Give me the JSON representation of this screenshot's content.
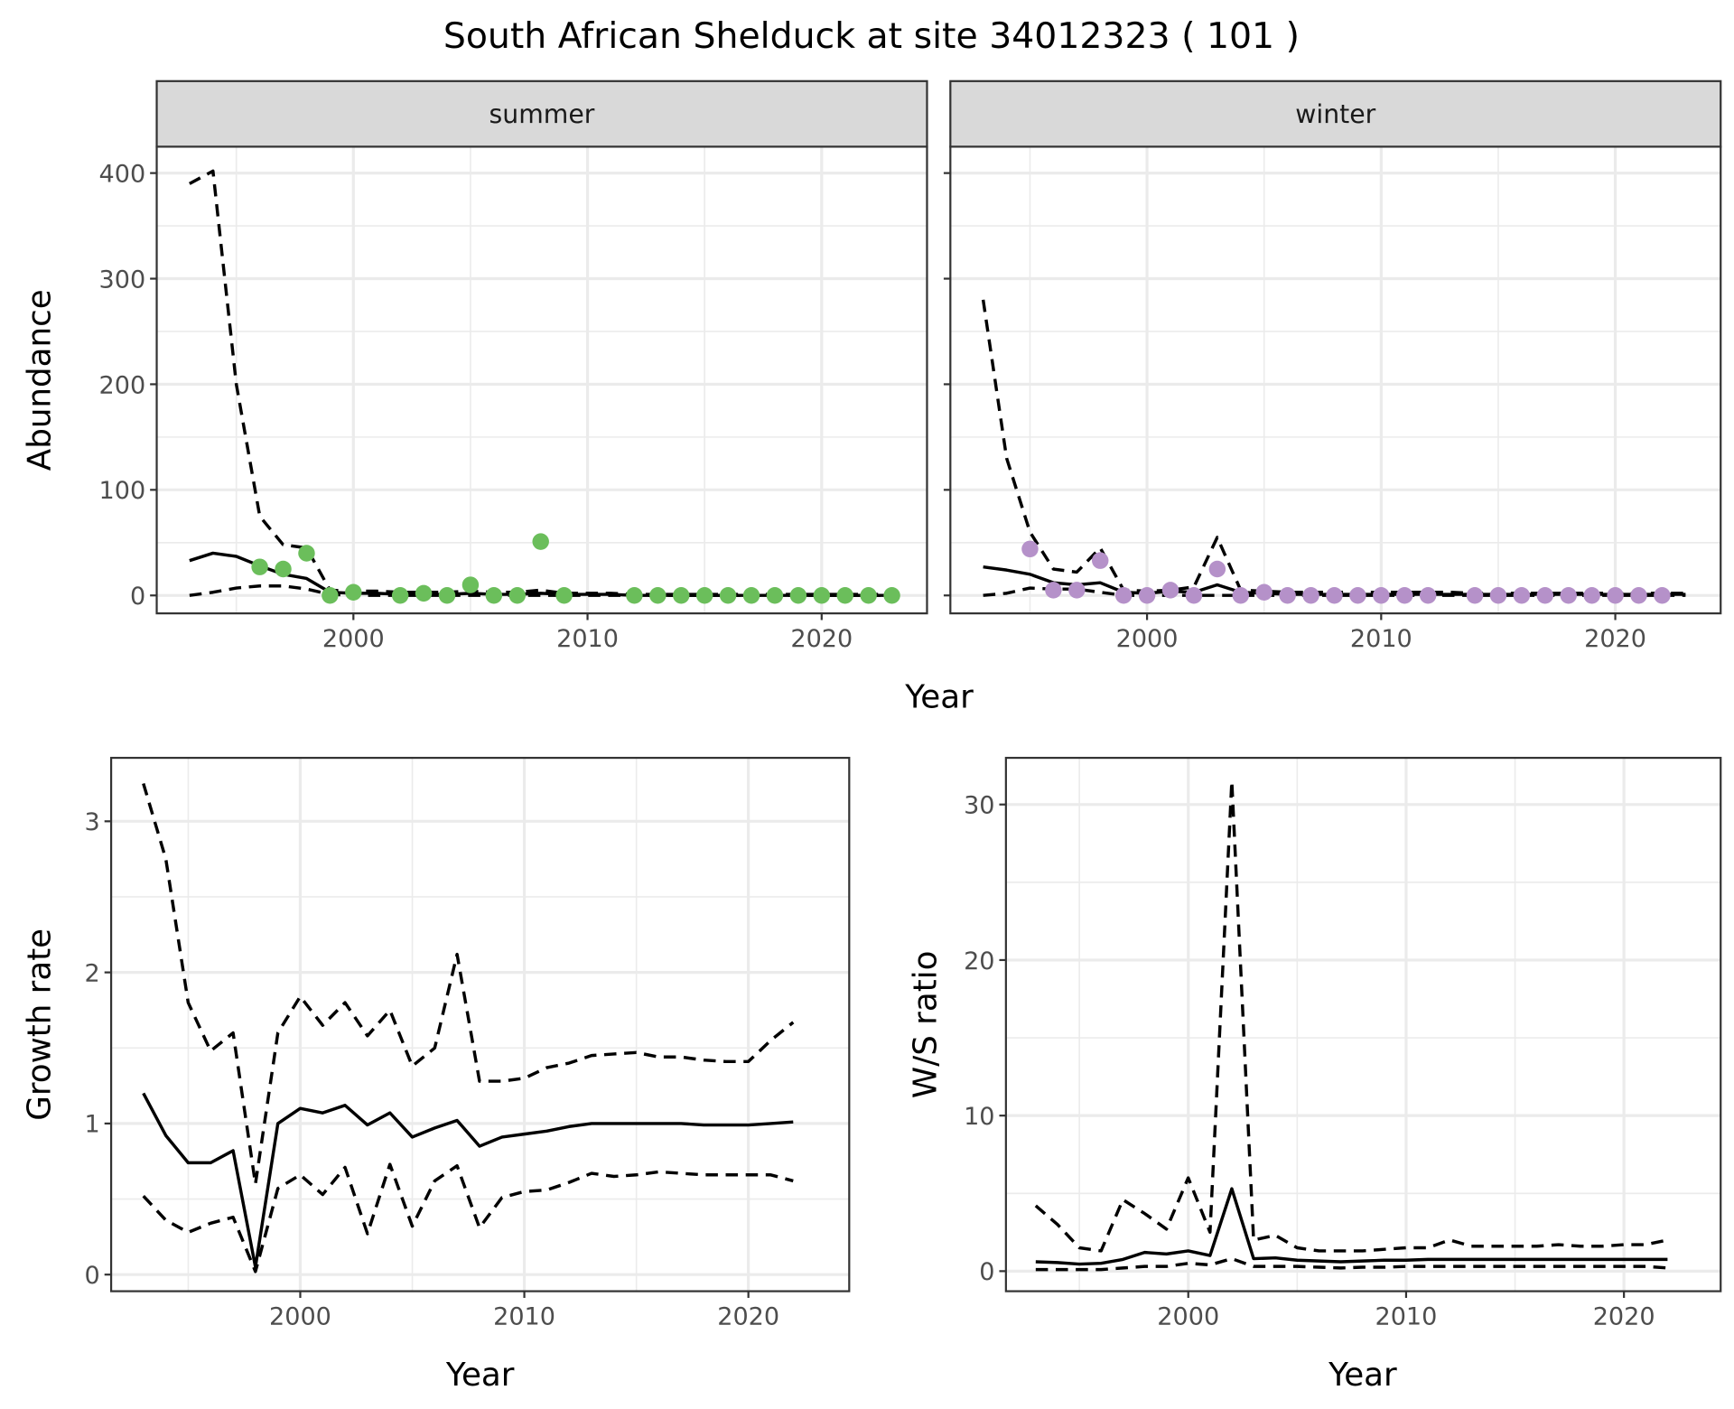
{
  "title": "South African Shelduck at site 34012323 ( 101 )",
  "colors": {
    "summer": "#6BBE5B",
    "winter": "#B591C9",
    "line": "#000000",
    "grid": "#EBEBEB",
    "strip": "#D9D9D9"
  },
  "chart_data": [
    {
      "type": "line",
      "panel": "summer",
      "strip_label": "summer",
      "xlabel": "Year",
      "ylabel": "Abundance",
      "xlim": [
        1991.6,
        2024.5
      ],
      "ylim": [
        -17,
        425
      ],
      "xticks": [
        2000,
        2010,
        2020
      ],
      "yticks": [
        0,
        100,
        200,
        300,
        400
      ],
      "grid": true,
      "x": [
        1993,
        1994,
        1995,
        1996,
        1997,
        1998,
        1999,
        2000,
        2001,
        2002,
        2003,
        2004,
        2005,
        2006,
        2007,
        2008,
        2009,
        2010,
        2011,
        2012,
        2013,
        2014,
        2015,
        2016,
        2017,
        2018,
        2019,
        2020,
        2021,
        2022,
        2023
      ],
      "series": [
        {
          "style": "solid",
          "values": [
            33,
            40,
            37,
            28,
            20,
            16,
            3,
            2,
            2,
            1,
            1,
            1,
            2,
            1,
            1,
            2,
            1,
            1,
            1,
            0,
            0,
            0,
            0,
            0,
            0,
            0,
            0,
            0,
            0,
            0,
            0
          ]
        },
        {
          "style": "dashed",
          "values": [
            390,
            402,
            200,
            75,
            48,
            45,
            5,
            4,
            4,
            3,
            3,
            3,
            4,
            3,
            3,
            5,
            2,
            2,
            2,
            1,
            1,
            1,
            1,
            1,
            1,
            1,
            1,
            1,
            1,
            1,
            1
          ]
        },
        {
          "style": "dashed",
          "values": [
            0,
            3,
            7,
            9,
            9,
            6,
            1,
            0,
            0,
            0,
            0,
            0,
            0,
            0,
            0,
            0,
            0,
            0,
            0,
            0,
            0,
            0,
            0,
            0,
            0,
            0,
            0,
            0,
            0,
            0,
            0
          ]
        }
      ],
      "points": {
        "x": [
          1996,
          1997,
          1998,
          1999,
          2000,
          2002,
          2003,
          2004,
          2005,
          2006,
          2007,
          2008,
          2009,
          2012,
          2013,
          2014,
          2015,
          2016,
          2017,
          2018,
          2019,
          2020,
          2021,
          2022,
          2023
        ],
        "y": [
          27,
          25,
          40,
          0,
          3,
          0,
          2,
          0,
          10,
          0,
          0,
          51,
          0,
          0,
          0,
          0,
          0,
          0,
          0,
          0,
          0,
          0,
          0,
          0,
          0
        ]
      }
    },
    {
      "type": "line",
      "panel": "winter",
      "strip_label": "winter",
      "xlabel": "Year",
      "ylabel": "Abundance",
      "xlim": [
        1991.6,
        2024.5
      ],
      "ylim": [
        -17,
        425
      ],
      "xticks": [
        2000,
        2010,
        2020
      ],
      "yticks": [
        0,
        100,
        200,
        300,
        400
      ],
      "grid": true,
      "x": [
        1993,
        1994,
        1995,
        1996,
        1997,
        1998,
        1999,
        2000,
        2001,
        2002,
        2003,
        2004,
        2005,
        2006,
        2007,
        2008,
        2009,
        2010,
        2011,
        2012,
        2013,
        2014,
        2015,
        2016,
        2017,
        2018,
        2019,
        2020,
        2021,
        2022,
        2023
      ],
      "series": [
        {
          "style": "solid",
          "values": [
            27,
            24,
            20,
            12,
            10,
            12,
            3,
            2,
            4,
            3,
            10,
            3,
            2,
            1,
            1,
            1,
            1,
            1,
            1,
            1,
            1,
            1,
            1,
            1,
            1,
            1,
            1,
            1,
            1,
            1,
            1
          ]
        },
        {
          "style": "dashed",
          "values": [
            280,
            130,
            60,
            25,
            22,
            45,
            5,
            4,
            5,
            8,
            55,
            5,
            4,
            3,
            3,
            3,
            3,
            3,
            3,
            3,
            3,
            2,
            2,
            2,
            2,
            2,
            2,
            2,
            2,
            2,
            2
          ]
        },
        {
          "style": "dashed",
          "values": [
            0,
            2,
            7,
            6,
            6,
            3,
            0,
            0,
            0,
            0,
            0,
            0,
            0,
            0,
            0,
            0,
            0,
            0,
            0,
            0,
            0,
            0,
            0,
            0,
            0,
            0,
            0,
            0,
            0,
            0,
            0
          ]
        }
      ],
      "points": {
        "x": [
          1995,
          1996,
          1997,
          1998,
          1999,
          2000,
          2001,
          2002,
          2003,
          2004,
          2005,
          2006,
          2007,
          2008,
          2009,
          2010,
          2011,
          2012,
          2014,
          2015,
          2016,
          2017,
          2018,
          2019,
          2020,
          2021,
          2022
        ],
        "y": [
          44,
          5,
          5,
          33,
          0,
          0,
          5,
          0,
          25,
          0,
          3,
          0,
          0,
          0,
          0,
          0,
          0,
          0,
          0,
          0,
          0,
          0,
          0,
          0,
          0,
          0,
          0
        ]
      }
    },
    {
      "type": "line",
      "panel": "growth",
      "xlabel": "Year",
      "ylabel": "Growth rate",
      "xlim": [
        1991.56,
        2024.5
      ],
      "ylim": [
        -0.11,
        3.42
      ],
      "xticks": [
        2000,
        2010,
        2020
      ],
      "yticks": [
        0,
        1,
        2,
        3
      ],
      "grid": true,
      "x": [
        1993,
        1994,
        1995,
        1996,
        1997,
        1998,
        1999,
        2000,
        2001,
        2002,
        2003,
        2004,
        2005,
        2006,
        2007,
        2008,
        2009,
        2010,
        2011,
        2012,
        2013,
        2014,
        2015,
        2016,
        2017,
        2018,
        2019,
        2020,
        2021,
        2022
      ],
      "series": [
        {
          "style": "solid",
          "values": [
            1.2,
            0.92,
            0.74,
            0.74,
            0.82,
            0.05,
            1.0,
            1.1,
            1.07,
            1.12,
            0.99,
            1.07,
            0.91,
            0.97,
            1.02,
            0.85,
            0.91,
            0.93,
            0.95,
            0.98,
            1.0,
            1.0,
            1.0,
            1.0,
            1.0,
            0.99,
            0.99,
            0.99,
            1.0,
            1.01
          ]
        },
        {
          "style": "dashed",
          "values": [
            3.25,
            2.75,
            1.8,
            1.48,
            1.6,
            0.6,
            1.6,
            1.84,
            1.65,
            1.8,
            1.58,
            1.75,
            1.38,
            1.5,
            2.12,
            1.28,
            1.28,
            1.3,
            1.37,
            1.4,
            1.45,
            1.46,
            1.47,
            1.44,
            1.44,
            1.42,
            1.41,
            1.41,
            1.55,
            1.67
          ]
        },
        {
          "style": "dashed",
          "values": [
            0.52,
            0.36,
            0.28,
            0.34,
            0.38,
            0.02,
            0.57,
            0.66,
            0.53,
            0.71,
            0.27,
            0.73,
            0.32,
            0.62,
            0.72,
            0.31,
            0.51,
            0.55,
            0.56,
            0.61,
            0.67,
            0.65,
            0.66,
            0.68,
            0.67,
            0.66,
            0.66,
            0.66,
            0.66,
            0.62
          ]
        }
      ]
    },
    {
      "type": "line",
      "panel": "ratio",
      "xlabel": "Year",
      "ylabel": "W/S ratio",
      "xlim": [
        1991.63,
        2024.44
      ],
      "ylim": [
        -1.29,
        33
      ],
      "xticks": [
        2000,
        2010,
        2020
      ],
      "yticks": [
        0,
        10,
        20,
        30
      ],
      "grid": true,
      "x": [
        1993,
        1994,
        1995,
        1996,
        1997,
        1998,
        1999,
        2000,
        2001,
        2002,
        2003,
        2004,
        2005,
        2006,
        2007,
        2008,
        2009,
        2010,
        2011,
        2012,
        2013,
        2014,
        2015,
        2016,
        2017,
        2018,
        2019,
        2020,
        2021,
        2022
      ],
      "series": [
        {
          "style": "solid",
          "values": [
            0.6,
            0.55,
            0.45,
            0.5,
            0.75,
            1.2,
            1.1,
            1.3,
            1.0,
            5.3,
            0.8,
            0.85,
            0.7,
            0.65,
            0.6,
            0.65,
            0.7,
            0.7,
            0.75,
            0.75,
            0.75,
            0.75,
            0.75,
            0.75,
            0.75,
            0.75,
            0.75,
            0.75,
            0.75,
            0.75
          ]
        },
        {
          "style": "dashed",
          "values": [
            4.2,
            3.0,
            1.5,
            1.3,
            4.6,
            3.7,
            2.7,
            6.0,
            2.5,
            31.5,
            2.0,
            2.3,
            1.5,
            1.3,
            1.3,
            1.3,
            1.4,
            1.5,
            1.5,
            2.0,
            1.6,
            1.6,
            1.6,
            1.6,
            1.7,
            1.6,
            1.6,
            1.7,
            1.7,
            2.0
          ]
        },
        {
          "style": "dashed",
          "values": [
            0.1,
            0.1,
            0.1,
            0.1,
            0.2,
            0.3,
            0.3,
            0.5,
            0.4,
            0.8,
            0.3,
            0.3,
            0.3,
            0.25,
            0.2,
            0.25,
            0.25,
            0.3,
            0.3,
            0.3,
            0.3,
            0.3,
            0.3,
            0.3,
            0.3,
            0.3,
            0.3,
            0.3,
            0.3,
            0.2
          ]
        }
      ]
    }
  ]
}
